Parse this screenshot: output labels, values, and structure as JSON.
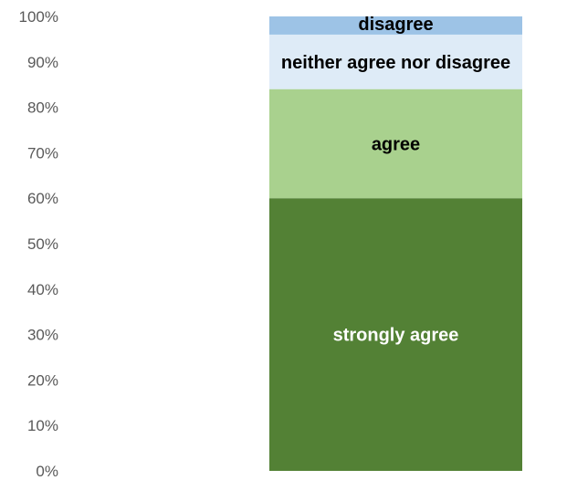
{
  "chart_data": {
    "type": "bar",
    "stacked": true,
    "percent_stacked": true,
    "categories": [
      ""
    ],
    "series": [
      {
        "name": "strongly agree",
        "values": [
          60
        ],
        "color": "#538135",
        "label_color": "#ffffff"
      },
      {
        "name": "agree",
        "values": [
          24
        ],
        "color": "#a9d18e",
        "label_color": "#000000"
      },
      {
        "name": "neither agree nor disagree",
        "values": [
          12
        ],
        "color": "#deebf7",
        "label_color": "#000000"
      },
      {
        "name": "disagree",
        "values": [
          4
        ],
        "color": "#9dc3e6",
        "label_color": "#000000"
      }
    ],
    "yticks": [
      "0%",
      "10%",
      "20%",
      "30%",
      "40%",
      "50%",
      "60%",
      "70%",
      "80%",
      "90%",
      "100%"
    ],
    "ylim": [
      0,
      100
    ],
    "title": "",
    "xlabel": "",
    "ylabel": "",
    "grid": false,
    "legend": "none"
  }
}
